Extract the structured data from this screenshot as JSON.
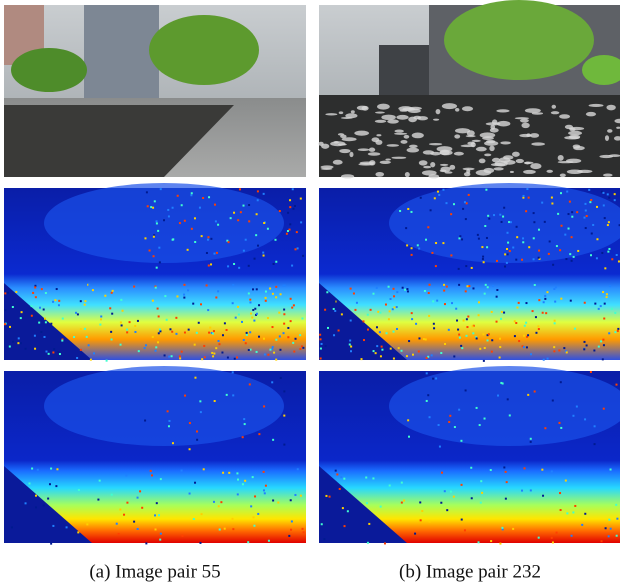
{
  "panels": [
    {
      "caption": "(a) Image pair 55"
    },
    {
      "caption": "(b) Image pair 232"
    }
  ]
}
